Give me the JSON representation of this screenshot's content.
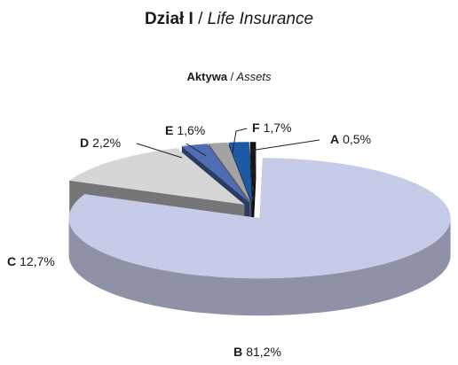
{
  "chart_data": {
    "type": "pie",
    "title": "Dział I / Life Insurance",
    "subtitle": "Aktywa / Assets",
    "categories": [
      "A",
      "B",
      "C",
      "D",
      "E",
      "F"
    ],
    "values": [
      0.5,
      81.2,
      12.7,
      2.2,
      1.6,
      1.7
    ],
    "value_labels": [
      "0,5%",
      "81,2%",
      "12,7%",
      "2,2%",
      "1,6%",
      "1,7%"
    ],
    "colors": [
      "#151515",
      "#c6cbe8",
      "#d6d6d6",
      "#4f6db4",
      "#a3a3a3",
      "#1d5aa6"
    ]
  }
}
